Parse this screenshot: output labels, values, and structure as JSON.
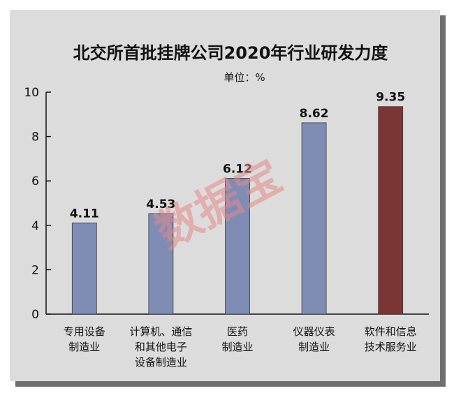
{
  "chart_data": {
    "type": "bar",
    "title": "北交所首批挂牌公司2020年行业研发力度",
    "unit_label": "单位：%",
    "categories": [
      [
        "专用设备",
        "制造业"
      ],
      [
        "计算机、通信",
        "和其他电子",
        "设备制造业"
      ],
      [
        "医药",
        "制造业"
      ],
      [
        "仪器仪表",
        "制造业"
      ],
      [
        "软件和信息",
        "技术服务业"
      ]
    ],
    "values": [
      4.11,
      4.53,
      6.12,
      8.62,
      9.35
    ],
    "value_labels": [
      "4.11",
      "4.53",
      "6.12",
      "8.62",
      "9.35"
    ],
    "bar_colors": [
      "#7f8db5",
      "#7f8db5",
      "#7f8db5",
      "#7f8db5",
      "#7b3535"
    ],
    "ylim": [
      0,
      10
    ],
    "yticks": [
      "0",
      "2",
      "4",
      "6",
      "8",
      "10"
    ],
    "grid": false,
    "watermark": "数据宝",
    "watermark_color": "#e58888"
  }
}
